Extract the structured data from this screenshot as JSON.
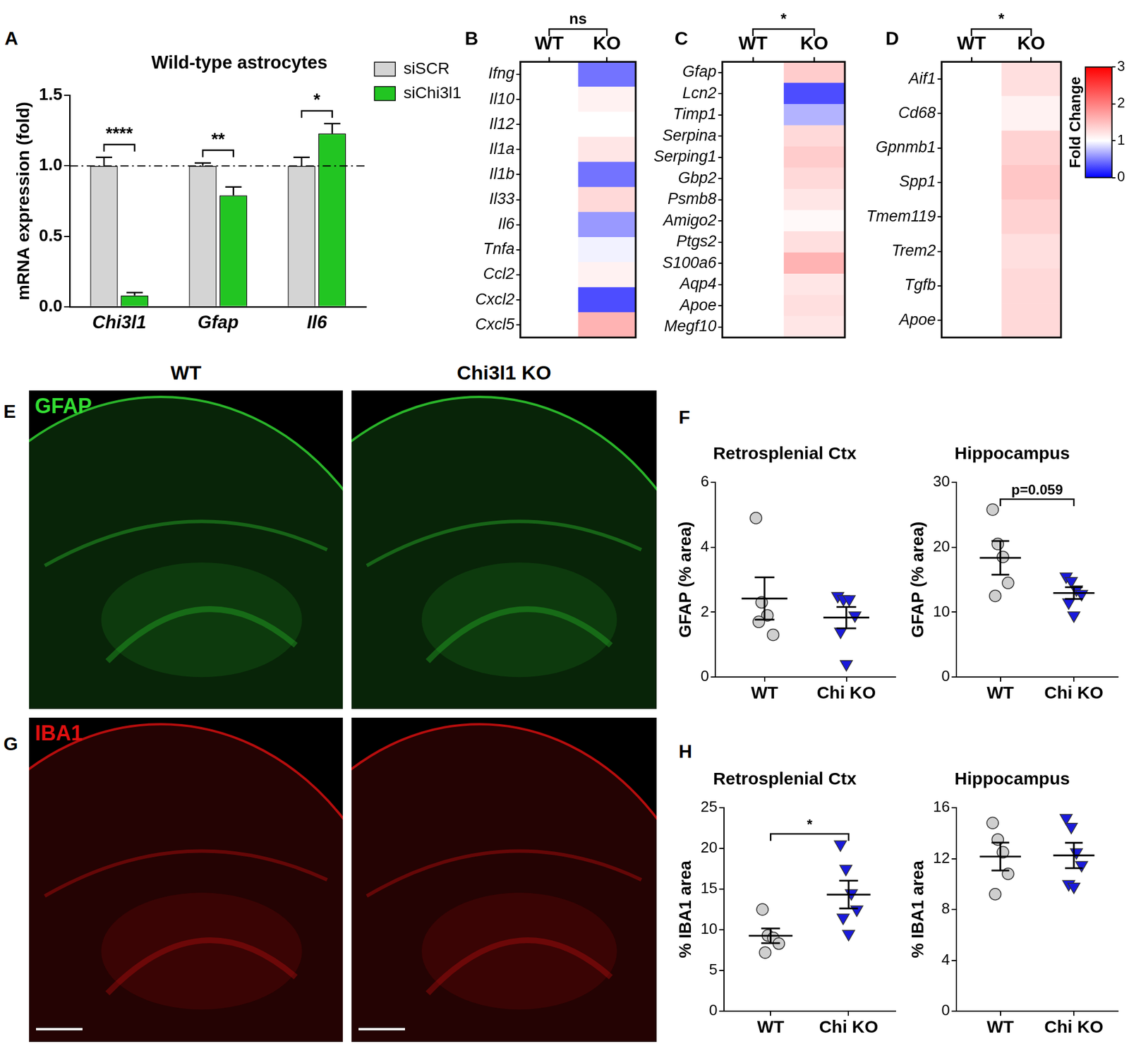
{
  "chart_data": [
    {
      "panel": "A",
      "type": "bar",
      "title": "Wild-type astrocytes",
      "y_label": "mRNA expression (fold)",
      "categories": [
        "Chi3l1",
        "Gfap",
        "Il6"
      ],
      "series": [
        {
          "name": "siSCR",
          "color": "#d4d4d4",
          "values": [
            1,
            1,
            1
          ],
          "errors": [
            0.06,
            0.02,
            0.06
          ]
        },
        {
          "name": "siChi3l1",
          "color": "#22c522",
          "values": [
            0.08,
            0.79,
            1.23
          ],
          "errors": [
            0.02,
            0.06,
            0.07
          ]
        }
      ],
      "ylim": [
        0,
        1.5
      ],
      "yticks": [
        {
          "value": 0,
          "label": "0.0"
        },
        {
          "value": 0.5,
          "label": "0.5"
        },
        {
          "value": 1,
          "label": "1.0"
        },
        {
          "value": 1.5,
          "label": "1.5"
        }
      ],
      "hline": 1,
      "annotations": [
        {
          "category": "Chi3l1",
          "text": "****"
        },
        {
          "category": "Gfap",
          "text": "**"
        },
        {
          "category": "Il6",
          "text": "*"
        }
      ],
      "legend": "right",
      "grid": false
    },
    {
      "panel": "B",
      "type": "heatmap",
      "columns": [
        "WT",
        "KO"
      ],
      "annotation": "ns",
      "rows": [
        "Ifng",
        "Il10",
        "Il12",
        "Il1a",
        "Il1b",
        "Il33",
        "Il6",
        "Tnfa",
        "Ccl2",
        "Cxcl2",
        "Cxcl5"
      ],
      "values": [
        [
          1,
          0.45
        ],
        [
          1,
          1.1
        ],
        [
          1,
          1.0
        ],
        [
          1,
          1.2
        ],
        [
          1,
          0.45
        ],
        [
          1,
          1.3
        ],
        [
          1,
          0.6
        ],
        [
          1,
          0.95
        ],
        [
          1,
          1.1
        ],
        [
          1,
          0.3
        ],
        [
          1,
          1.6
        ]
      ]
    },
    {
      "panel": "C",
      "type": "heatmap",
      "columns": [
        "WT",
        "KO"
      ],
      "annotation": "*",
      "rows": [
        "Gfap",
        "Lcn2",
        "Timp1",
        "Serpina",
        "Serping1",
        "Gbp2",
        "Psmb8",
        "Amigo2",
        "Ptgs2",
        "S100a6",
        "Aqp4",
        "Apoe",
        "Megf10"
      ],
      "values": [
        [
          1,
          1.4
        ],
        [
          1,
          0.3
        ],
        [
          1,
          0.7
        ],
        [
          1,
          1.3
        ],
        [
          1,
          1.4
        ],
        [
          1,
          1.3
        ],
        [
          1,
          1.2
        ],
        [
          1,
          1.05
        ],
        [
          1,
          1.25
        ],
        [
          1,
          1.6
        ],
        [
          1,
          1.2
        ],
        [
          1,
          1.25
        ],
        [
          1,
          1.2
        ]
      ]
    },
    {
      "panel": "D",
      "type": "heatmap",
      "columns": [
        "WT",
        "KO"
      ],
      "annotation": "*",
      "rows": [
        "Aif1",
        "Cd68",
        "Gpnmb1",
        "Spp1",
        "Tmem119",
        "Trem2",
        "Tgfb",
        "Apoe"
      ],
      "values": [
        [
          1,
          1.25
        ],
        [
          1,
          1.1
        ],
        [
          1,
          1.35
        ],
        [
          1,
          1.45
        ],
        [
          1,
          1.35
        ],
        [
          1,
          1.25
        ],
        [
          1,
          1.3
        ],
        [
          1,
          1.3
        ]
      ],
      "colorbar": {
        "label": "Fold Change",
        "range": [
          0,
          3
        ],
        "ticks": [
          0,
          1,
          2,
          3
        ],
        "center": 1,
        "colors": [
          "#0000ff",
          "#ffffff",
          "#ff0000"
        ]
      }
    },
    {
      "panel": "F",
      "type": "dot",
      "subplots": [
        {
          "title": "Retrosplenial Ctx",
          "y_label": "GFAP (% area)",
          "categories": [
            "WT",
            "Chi KO"
          ],
          "series": [
            {
              "color": "#cfcfcf",
              "marker": "circle",
              "values": [
                4.9,
                2.3,
                1.9,
                1.3,
                1.7
              ],
              "mean": 2.42,
              "sem": 0.65
            },
            {
              "color": "#1a1adc",
              "marker": "triangle_down",
              "values": [
                2.5,
                2.4,
                2.4,
                1.9,
                1.4,
                0.4
              ],
              "mean": 1.83,
              "sem": 0.33
            }
          ],
          "ylim": [
            0,
            6
          ],
          "yticks": [
            0,
            2,
            4,
            6
          ]
        },
        {
          "title": "Hippocampus",
          "y_label": "GFAP (% area)",
          "categories": [
            "WT",
            "Chi KO"
          ],
          "annotation": "p=0.059",
          "series": [
            {
              "color": "#cfcfcf",
              "marker": "circle",
              "values": [
                25.8,
                20.5,
                18.5,
                14.5,
                12.5
              ],
              "mean": 18.36,
              "sem": 2.6
            },
            {
              "color": "#1a1adc",
              "marker": "triangle_down",
              "values": [
                15.5,
                14.8,
                13.5,
                12.8,
                11.5,
                9.5
              ],
              "mean": 12.93,
              "sem": 0.9
            }
          ],
          "ylim": [
            0,
            30
          ],
          "yticks": [
            0,
            10,
            20,
            30
          ]
        }
      ]
    },
    {
      "panel": "H",
      "type": "dot",
      "subplots": [
        {
          "title": "Retrosplenial Ctx",
          "y_label": "% IBA1 area",
          "categories": [
            "WT",
            "Chi KO"
          ],
          "annotation": "*",
          "series": [
            {
              "color": "#cfcfcf",
              "marker": "circle",
              "values": [
                12.5,
                9.3,
                9.0,
                8.3,
                7.2
              ],
              "mean": 9.26,
              "sem": 0.9
            },
            {
              "color": "#1a1adc",
              "marker": "triangle_down",
              "values": [
                20.5,
                17.5,
                14.5,
                12.5,
                11.5,
                9.5
              ],
              "mean": 14.33,
              "sem": 1.7
            }
          ],
          "ylim": [
            0,
            25
          ],
          "yticks": [
            0,
            5,
            10,
            15,
            20,
            25
          ]
        },
        {
          "title": "Hippocampus",
          "y_label": "% IBA1 area",
          "categories": [
            "WT",
            "Chi KO"
          ],
          "series": [
            {
              "color": "#cfcfcf",
              "marker": "circle",
              "values": [
                14.8,
                13.5,
                12.5,
                10.8,
                9.2
              ],
              "mean": 12.16,
              "sem": 1.1
            },
            {
              "color": "#1a1adc",
              "marker": "triangle_down",
              "values": [
                15.2,
                14.5,
                12.5,
                11.5,
                10.0,
                9.8
              ],
              "mean": 12.25,
              "sem": 1.0
            }
          ],
          "ylim": [
            0,
            16
          ],
          "yticks": [
            0,
            4,
            8,
            12,
            16
          ]
        }
      ]
    }
  ],
  "images": {
    "columns": [
      "WT",
      "Chi3l1 KO"
    ],
    "rows": [
      {
        "panel": "E",
        "stain": "GFAP",
        "color": "#33dd33"
      },
      {
        "panel": "G",
        "stain": "IBA1",
        "color": "#e01010"
      }
    ]
  }
}
